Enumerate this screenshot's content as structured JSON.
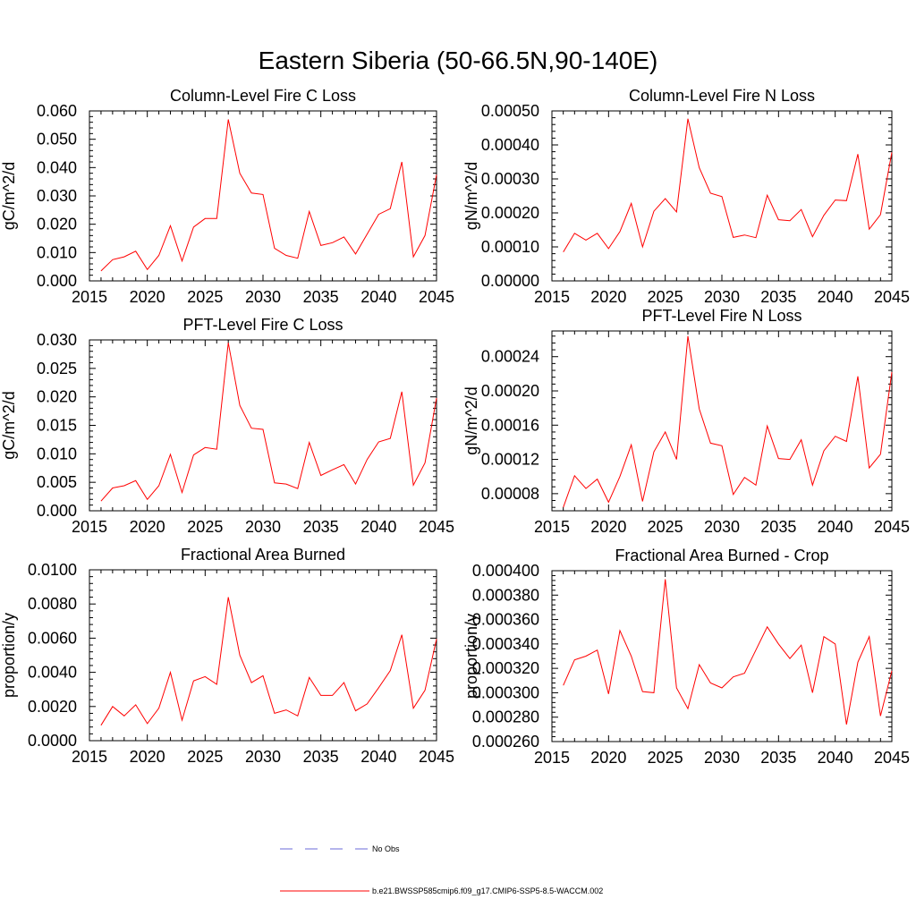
{
  "title": "Eastern Siberia (50-66.5N,90-140E)",
  "colors": {
    "series": "#ff0000",
    "no_obs": "#6b6bd8",
    "axis": "#000000"
  },
  "legend": {
    "no_obs_label": "No Obs",
    "series_label": "b.e21.BWSSP585cmip6.f09_g17.CMIP6-SSP5-8.5-WACCM.002"
  },
  "chart_data": [
    {
      "type": "line",
      "title": "Column-Level Fire C Loss",
      "ylabel": "gC/m^2/d",
      "xlabel": "",
      "xlim": [
        2015,
        2045
      ],
      "ylim": [
        0,
        0.06
      ],
      "x_ticks": [
        2015,
        2020,
        2025,
        2030,
        2035,
        2040,
        2045
      ],
      "y_ticks": [
        0,
        0.01,
        0.02,
        0.03,
        0.04,
        0.05,
        0.06
      ],
      "y_tick_labels": [
        "0.000",
        "0.010",
        "0.020",
        "0.030",
        "0.040",
        "0.050",
        "0.060"
      ],
      "x": [
        2016,
        2017,
        2018,
        2019,
        2020,
        2021,
        2022,
        2023,
        2024,
        2025,
        2026,
        2027,
        2028,
        2029,
        2030,
        2031,
        2032,
        2033,
        2034,
        2035,
        2036,
        2037,
        2038,
        2039,
        2040,
        2041,
        2042,
        2043,
        2044,
        2045
      ],
      "values": [
        0.0035,
        0.0075,
        0.0085,
        0.0105,
        0.004,
        0.009,
        0.0195,
        0.007,
        0.019,
        0.022,
        0.022,
        0.057,
        0.038,
        0.031,
        0.0305,
        0.0115,
        0.009,
        0.008,
        0.0245,
        0.0125,
        0.0135,
        0.0155,
        0.0095,
        0.0165,
        0.0235,
        0.0255,
        0.042,
        0.0085,
        0.016,
        0.0375
      ]
    },
    {
      "type": "line",
      "title": "Column-Level Fire N Loss",
      "ylabel": "gN/m^2/d",
      "xlabel": "",
      "xlim": [
        2015,
        2045
      ],
      "ylim": [
        0,
        0.0005
      ],
      "x_ticks": [
        2015,
        2020,
        2025,
        2030,
        2035,
        2040,
        2045
      ],
      "y_ticks": [
        0,
        0.0001,
        0.0002,
        0.0003,
        0.0004,
        0.0005
      ],
      "y_tick_labels": [
        "0.00000",
        "0.00010",
        "0.00020",
        "0.00030",
        "0.00040",
        "0.00050"
      ],
      "x": [
        2016,
        2017,
        2018,
        2019,
        2020,
        2021,
        2022,
        2023,
        2024,
        2025,
        2026,
        2027,
        2028,
        2029,
        2030,
        2031,
        2032,
        2033,
        2034,
        2035,
        2036,
        2037,
        2038,
        2039,
        2040,
        2041,
        2042,
        2043,
        2044,
        2045
      ],
      "values": [
        8.5e-05,
        0.00014,
        0.00012,
        0.00014,
        9.5e-05,
        0.000145,
        0.000228,
        0.0001,
        0.000205,
        0.000242,
        0.000203,
        0.000477,
        0.000333,
        0.000258,
        0.000248,
        0.000128,
        0.000135,
        0.000127,
        0.000252,
        0.00018,
        0.000177,
        0.00021,
        0.00013,
        0.000193,
        0.000238,
        0.000236,
        0.000373,
        0.000152,
        0.000195,
        0.000378
      ]
    },
    {
      "type": "line",
      "title": "PFT-Level Fire C Loss",
      "ylabel": "gC/m^2/d",
      "xlabel": "",
      "xlim": [
        2015,
        2045
      ],
      "ylim": [
        0,
        0.03
      ],
      "x_ticks": [
        2015,
        2020,
        2025,
        2030,
        2035,
        2040,
        2045
      ],
      "y_ticks": [
        0,
        0.005,
        0.01,
        0.015,
        0.02,
        0.025,
        0.03
      ],
      "y_tick_labels": [
        "0.000",
        "0.005",
        "0.010",
        "0.015",
        "0.020",
        "0.025",
        "0.030"
      ],
      "x": [
        2016,
        2017,
        2018,
        2019,
        2020,
        2021,
        2022,
        2023,
        2024,
        2025,
        2026,
        2027,
        2028,
        2029,
        2030,
        2031,
        2032,
        2033,
        2034,
        2035,
        2036,
        2037,
        2038,
        2039,
        2040,
        2041,
        2042,
        2043,
        2044,
        2045
      ],
      "values": [
        0.0017,
        0.004,
        0.0044,
        0.0053,
        0.002,
        0.0044,
        0.0099,
        0.0032,
        0.0098,
        0.0111,
        0.0108,
        0.0295,
        0.0185,
        0.0145,
        0.0143,
        0.0049,
        0.0047,
        0.0039,
        0.012,
        0.0062,
        0.0072,
        0.0081,
        0.0047,
        0.009,
        0.0121,
        0.0127,
        0.0209,
        0.0045,
        0.0084,
        0.0198
      ]
    },
    {
      "type": "line",
      "title": "PFT-Level Fire N Loss",
      "ylabel": "gN/m^2/d",
      "xlabel": "",
      "xlim": [
        2015,
        2045
      ],
      "ylim": [
        6e-05,
        0.00027
      ],
      "x_ticks": [
        2015,
        2020,
        2025,
        2030,
        2035,
        2040,
        2045
      ],
      "y_ticks": [
        8e-05,
        0.00012,
        0.00016,
        0.0002,
        0.00024
      ],
      "y_tick_labels": [
        "0.00008",
        "0.00012",
        "0.00016",
        "0.00020",
        "0.00024"
      ],
      "x": [
        2016,
        2017,
        2018,
        2019,
        2020,
        2021,
        2022,
        2023,
        2024,
        2025,
        2026,
        2027,
        2028,
        2029,
        2030,
        2031,
        2032,
        2033,
        2034,
        2035,
        2036,
        2037,
        2038,
        2039,
        2040,
        2041,
        2042,
        2043,
        2044,
        2045
      ],
      "values": [
        6.4e-05,
        0.000101,
        8.6e-05,
        9.7e-05,
        7e-05,
        0.0001,
        0.000137,
        7.1e-05,
        0.000129,
        0.000152,
        0.00012,
        0.000264,
        0.000179,
        0.000139,
        0.000136,
        7.9e-05,
        9.9e-05,
        9e-05,
        0.000159,
        0.000121,
        0.00012,
        0.000143,
        9e-05,
        0.00013,
        0.000147,
        0.000141,
        0.000217,
        0.00011,
        0.000126,
        0.000222
      ]
    },
    {
      "type": "line",
      "title": "Fractional Area Burned",
      "ylabel": "proportion/y",
      "xlabel": "",
      "xlim": [
        2015,
        2045
      ],
      "ylim": [
        0,
        0.01
      ],
      "x_ticks": [
        2015,
        2020,
        2025,
        2030,
        2035,
        2040,
        2045
      ],
      "y_ticks": [
        0,
        0.002,
        0.004,
        0.006,
        0.008,
        0.01
      ],
      "y_tick_labels": [
        "0.0000",
        "0.0020",
        "0.0040",
        "0.0060",
        "0.0080",
        "0.0100"
      ],
      "x": [
        2016,
        2017,
        2018,
        2019,
        2020,
        2021,
        2022,
        2023,
        2024,
        2025,
        2026,
        2027,
        2028,
        2029,
        2030,
        2031,
        2032,
        2033,
        2034,
        2035,
        2036,
        2037,
        2038,
        2039,
        2040,
        2041,
        2042,
        2043,
        2044,
        2045
      ],
      "values": [
        0.0009,
        0.002,
        0.00145,
        0.0021,
        0.001,
        0.0019,
        0.004,
        0.0012,
        0.0035,
        0.00375,
        0.0033,
        0.0084,
        0.005,
        0.0034,
        0.0038,
        0.0016,
        0.0018,
        0.00145,
        0.0037,
        0.00265,
        0.00265,
        0.0034,
        0.00175,
        0.00215,
        0.0031,
        0.0041,
        0.0062,
        0.0019,
        0.00295,
        0.00595
      ]
    },
    {
      "type": "line",
      "title": "Fractional Area Burned - Crop",
      "ylabel": "proportion/y",
      "xlabel": "",
      "xlim": [
        2015,
        2045
      ],
      "ylim": [
        0.00026,
        0.0004
      ],
      "x_ticks": [
        2015,
        2020,
        2025,
        2030,
        2035,
        2040,
        2045
      ],
      "y_ticks": [
        0.00026,
        0.00028,
        0.0003,
        0.00032,
        0.00034,
        0.00036,
        0.00038,
        0.0004
      ],
      "y_tick_labels": [
        "0.000260",
        "0.000280",
        "0.000300",
        "0.000320",
        "0.000340",
        "0.000360",
        "0.000380",
        "0.000400"
      ],
      "x": [
        2016,
        2017,
        2018,
        2019,
        2020,
        2021,
        2022,
        2023,
        2024,
        2025,
        2026,
        2027,
        2028,
        2029,
        2030,
        2031,
        2032,
        2033,
        2034,
        2035,
        2036,
        2037,
        2038,
        2039,
        2040,
        2041,
        2042,
        2043,
        2044,
        2045
      ],
      "values": [
        0.000306,
        0.000327,
        0.00033,
        0.000335,
        0.000299,
        0.000351,
        0.00033,
        0.000301,
        0.0003,
        0.000393,
        0.000304,
        0.000287,
        0.000323,
        0.000308,
        0.000304,
        0.000313,
        0.000316,
        0.000335,
        0.000354,
        0.00034,
        0.000328,
        0.000339,
        0.0003,
        0.000346,
        0.00034,
        0.000274,
        0.000325,
        0.000346,
        0.000281,
        0.000318
      ]
    }
  ]
}
